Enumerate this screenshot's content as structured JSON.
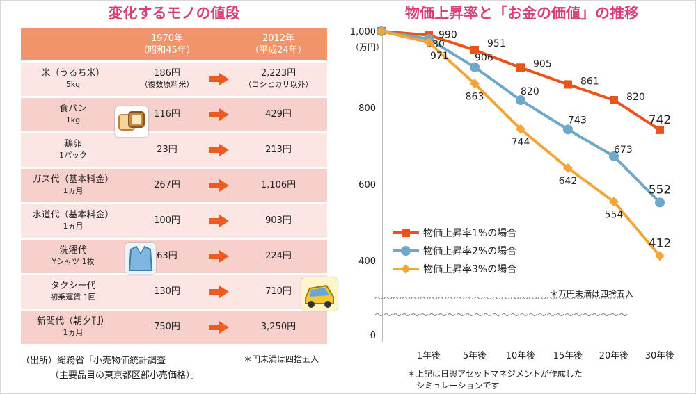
{
  "left": {
    "title": "変化するモノの値段",
    "header_1970": "1970年",
    "header_1970_sub": "（昭和45年）",
    "header_2012": "2012年",
    "header_2012_sub": "（平成24年）",
    "rows": [
      {
        "item": "米（うるち米）",
        "item_sub": "5kg",
        "p1970": "186円",
        "p1970_note": "（複数原料米）",
        "p2012": "2,223円",
        "p2012_note": "（コシヒカリ以外）"
      },
      {
        "item": "食パン",
        "item_sub": "1kg",
        "p1970": "116円",
        "p1970_note": "",
        "p2012": "429円",
        "p2012_note": ""
      },
      {
        "item": "鶏卵",
        "item_sub": "1パック",
        "p1970": "23円",
        "p1970_note": "",
        "p2012": "213円",
        "p2012_note": ""
      },
      {
        "item": "ガス代（基本料金）",
        "item_sub": "1ヵ月",
        "p1970": "267円",
        "p1970_note": "",
        "p2012": "1,106円",
        "p2012_note": ""
      },
      {
        "item": "水道代（基本料金）",
        "item_sub": "1ヵ月",
        "p1970": "100円",
        "p1970_note": "",
        "p2012": "903円",
        "p2012_note": ""
      },
      {
        "item": "洗濯代",
        "item_sub": "Yシャツ 1枚",
        "p1970": "63円",
        "p1970_note": "",
        "p2012": "224円",
        "p2012_note": ""
      },
      {
        "item": "タクシー代",
        "item_sub": "初乗運賃 1回",
        "p1970": "130円",
        "p1970_note": "",
        "p2012": "710円",
        "p2012_note": ""
      },
      {
        "item": "新聞代（朝夕刊）",
        "item_sub": "1ヵ月",
        "p1970": "750円",
        "p1970_note": "",
        "p2012": "3,250円",
        "p2012_note": ""
      }
    ],
    "source_line1": "（出所）総務省「小売物価統計調査",
    "source_line2": "（主要品目の東京都区部小売価格）」",
    "note": "＊円未満は四捨五入",
    "icons": [
      "bread-icon",
      "shirt-icon",
      "taxi-icon"
    ]
  },
  "right": {
    "title": "物価上昇率と「お金の価値」の推移",
    "note_unit": "＊万円未満は四捨五入",
    "note_line1": "＊上記は日興アセットマネジメントが作成した",
    "note_line2": "シミュレーションです"
  },
  "chart_data": {
    "type": "line",
    "title": "物価上昇率と「お金の価値」の推移",
    "ylabel": "（万円）",
    "y_ticks": [
      "1,000",
      "800",
      "600",
      "400",
      "0"
    ],
    "ylim": [
      400,
      1000
    ],
    "axis_break": true,
    "categories": [
      "",
      "1年後",
      "5年後",
      "10年後",
      "15年後",
      "20年後",
      "30年後"
    ],
    "series": [
      {
        "name": "物価上昇率1%の場合",
        "color": "#e8541c",
        "marker": "square",
        "values": [
          1000,
          990,
          951,
          905,
          861,
          820,
          742
        ],
        "labels": [
          "",
          "990",
          "951",
          "905",
          "861",
          "820",
          "742"
        ]
      },
      {
        "name": "物価上昇率2%の場合",
        "color": "#6fa8c8",
        "marker": "circle",
        "values": [
          1000,
          980,
          906,
          820,
          743,
          673,
          552
        ],
        "labels": [
          "",
          "980",
          "906",
          "820",
          "743",
          "673",
          "552"
        ]
      },
      {
        "name": "物価上昇率3%の場合",
        "color": "#f2a53a",
        "marker": "diamond",
        "values": [
          1000,
          971,
          863,
          744,
          642,
          554,
          412
        ],
        "labels": [
          "",
          "971",
          "863",
          "744",
          "642",
          "554",
          "412"
        ]
      }
    ],
    "legend_position": "bottom-left",
    "grid": false
  }
}
